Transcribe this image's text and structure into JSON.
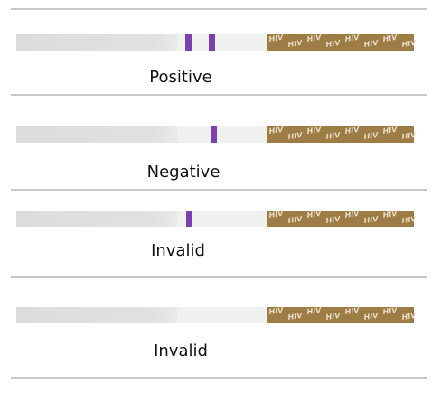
{
  "strips": [
    {
      "label": "Positive"
    },
    {
      "label": "Negative"
    },
    {
      "label": "Invalid"
    },
    {
      "label": "Invalid"
    }
  ],
  "handle_text": "HIV"
}
